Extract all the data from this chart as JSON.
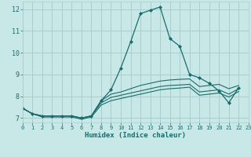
{
  "xlabel": "Humidex (Indice chaleur)",
  "xlim": [
    0,
    23
  ],
  "ylim": [
    6.8,
    12.35
  ],
  "yticks": [
    7,
    8,
    9,
    10,
    11,
    12
  ],
  "xticks": [
    0,
    1,
    2,
    3,
    4,
    5,
    6,
    7,
    8,
    9,
    10,
    11,
    12,
    13,
    14,
    15,
    16,
    17,
    18,
    19,
    20,
    21,
    22,
    23
  ],
  "background_color": "#c8e8e8",
  "grid_color": "#aacece",
  "line_color": "#1a6b6b",
  "lines": [
    {
      "x": [
        0,
        1,
        2,
        3,
        4,
        5,
        6,
        7,
        8,
        9,
        10,
        11,
        12,
        13,
        14,
        15,
        16,
        17,
        18,
        19,
        20,
        21,
        22
      ],
      "y": [
        7.45,
        7.2,
        7.1,
        7.1,
        7.1,
        7.1,
        7.0,
        7.1,
        7.8,
        8.3,
        9.3,
        10.5,
        11.8,
        11.95,
        12.1,
        10.65,
        10.3,
        9.0,
        8.85,
        8.6,
        8.25,
        7.7,
        8.4
      ],
      "marker": true
    },
    {
      "x": [
        0,
        1,
        2,
        3,
        4,
        5,
        6,
        7,
        8,
        9,
        10,
        11,
        12,
        13,
        14,
        15,
        16,
        17,
        18,
        19,
        20,
        21,
        22
      ],
      "y": [
        7.45,
        7.2,
        7.1,
        7.1,
        7.1,
        7.1,
        7.0,
        7.1,
        7.8,
        8.1,
        8.2,
        8.35,
        8.5,
        8.6,
        8.7,
        8.75,
        8.78,
        8.8,
        8.45,
        8.5,
        8.55,
        8.35,
        8.5
      ],
      "marker": false
    },
    {
      "x": [
        0,
        1,
        2,
        3,
        4,
        5,
        6,
        7,
        8,
        9,
        10,
        11,
        12,
        13,
        14,
        15,
        16,
        17,
        18,
        19,
        20,
        21,
        22
      ],
      "y": [
        7.45,
        7.2,
        7.1,
        7.1,
        7.1,
        7.1,
        7.0,
        7.1,
        7.7,
        7.95,
        8.05,
        8.15,
        8.25,
        8.35,
        8.45,
        8.5,
        8.52,
        8.55,
        8.2,
        8.25,
        8.3,
        8.1,
        8.35
      ],
      "marker": false
    },
    {
      "x": [
        0,
        1,
        2,
        3,
        4,
        5,
        6,
        7,
        8,
        9,
        10,
        11,
        12,
        13,
        14,
        15,
        16,
        17,
        18,
        19,
        20,
        21,
        22
      ],
      "y": [
        7.45,
        7.2,
        7.05,
        7.05,
        7.05,
        7.05,
        6.95,
        7.05,
        7.6,
        7.8,
        7.9,
        8.0,
        8.1,
        8.2,
        8.3,
        8.35,
        8.38,
        8.42,
        8.05,
        8.1,
        8.15,
        7.97,
        8.22
      ],
      "marker": false
    }
  ]
}
